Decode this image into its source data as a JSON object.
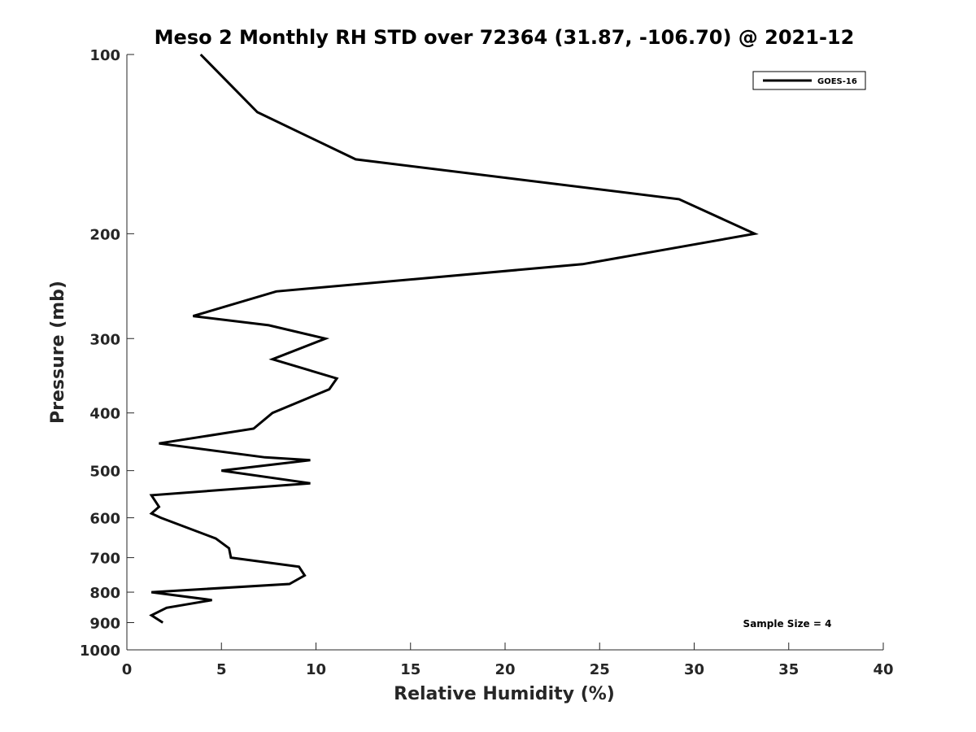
{
  "chart_data": {
    "type": "line",
    "title": "Meso 2 Monthly RH STD over 72364 (31.87, -106.70) @ 2021-12",
    "xlabel": "Relative Humidity (%)",
    "ylabel": "Pressure (mb)",
    "xlim": [
      0,
      40
    ],
    "ylim": [
      100,
      1000
    ],
    "y_scale": "log",
    "y_reversed": true,
    "grid": false,
    "legend_position": "top-right",
    "x_ticks": [
      "0",
      "5",
      "10",
      "15",
      "20",
      "25",
      "30",
      "35",
      "40"
    ],
    "y_ticks": [
      "100",
      "200",
      "300",
      "400",
      "500",
      "600",
      "700",
      "800",
      "900",
      "1000"
    ],
    "series": [
      {
        "name": "GOES-16",
        "color": "#000000",
        "points": [
          {
            "x": 3.9,
            "y": 100
          },
          {
            "x": 6.9,
            "y": 125
          },
          {
            "x": 12.1,
            "y": 150
          },
          {
            "x": 29.2,
            "y": 175
          },
          {
            "x": 33.2,
            "y": 200
          },
          {
            "x": 24.1,
            "y": 225
          },
          {
            "x": 7.9,
            "y": 250
          },
          {
            "x": 3.5,
            "y": 275
          },
          {
            "x": 7.5,
            "y": 285
          },
          {
            "x": 10.5,
            "y": 300
          },
          {
            "x": 7.7,
            "y": 325
          },
          {
            "x": 11.1,
            "y": 350
          },
          {
            "x": 10.7,
            "y": 365
          },
          {
            "x": 7.7,
            "y": 400
          },
          {
            "x": 6.7,
            "y": 425
          },
          {
            "x": 1.7,
            "y": 450
          },
          {
            "x": 7.3,
            "y": 475
          },
          {
            "x": 9.7,
            "y": 480
          },
          {
            "x": 5.0,
            "y": 500
          },
          {
            "x": 9.7,
            "y": 525
          },
          {
            "x": 1.3,
            "y": 550
          },
          {
            "x": 1.7,
            "y": 575
          },
          {
            "x": 1.3,
            "y": 590
          },
          {
            "x": 1.8,
            "y": 600
          },
          {
            "x": 4.7,
            "y": 650
          },
          {
            "x": 5.4,
            "y": 675
          },
          {
            "x": 5.5,
            "y": 700
          },
          {
            "x": 9.1,
            "y": 725
          },
          {
            "x": 9.4,
            "y": 750
          },
          {
            "x": 8.6,
            "y": 775
          },
          {
            "x": 1.3,
            "y": 800
          },
          {
            "x": 4.5,
            "y": 825
          },
          {
            "x": 2.1,
            "y": 850
          },
          {
            "x": 1.3,
            "y": 875
          },
          {
            "x": 1.9,
            "y": 900
          }
        ]
      }
    ],
    "annotations": [
      "Sample Size = 4"
    ]
  }
}
